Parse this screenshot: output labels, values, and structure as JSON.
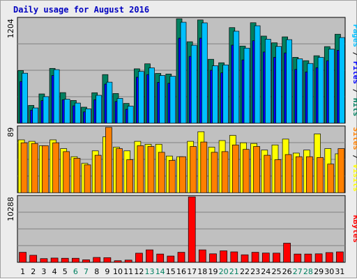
{
  "colors": {
    "pages": "#00c0ff",
    "files": "#0000ff",
    "hits": "#008060",
    "sites": "#ff8000",
    "visits": "#ffff00",
    "kbytes": "#ff0000",
    "weekend_label": "#008060",
    "weekday_label": "#000000",
    "title": "#0000c0",
    "separator": "#000000"
  },
  "chart_data": {
    "type": "bar",
    "title": "Daily usage for August 2016",
    "categories": [
      "1",
      "2",
      "3",
      "4",
      "5",
      "6",
      "7",
      "8",
      "9",
      "10",
      "11",
      "12",
      "13",
      "14",
      "15",
      "16",
      "17",
      "18",
      "19",
      "20",
      "21",
      "22",
      "23",
      "24",
      "25",
      "26",
      "27",
      "28",
      "29",
      "30",
      "31"
    ],
    "weekend_days": [
      "6",
      "7",
      "13",
      "14",
      "20",
      "21",
      "27",
      "28"
    ],
    "panels": [
      {
        "id": "hits",
        "ymax_label": "1204",
        "ylim": [
          0,
          1204
        ],
        "right_label": [
          {
            "text": "Pages",
            "color": "#00c0ff"
          },
          {
            "text": " / ",
            "color": "#000000"
          },
          {
            "text": "Files",
            "color": "#0000ff"
          },
          {
            "text": " / ",
            "color": "#000000"
          },
          {
            "text": "Hits",
            "color": "#008060"
          }
        ],
        "series": [
          {
            "name": "Hits",
            "color": "#008060",
            "values": [
              607,
              205,
              337,
              632,
              352,
              262,
              185,
              351,
              560,
              342,
              228,
              627,
              685,
              574,
              567,
              1204,
              939,
              1190,
              737,
              697,
              1102,
              889,
              1158,
              1004,
              927,
              995,
              759,
              721,
              778,
              883,
              1026
            ]
          },
          {
            "name": "Files",
            "color": "#0000ff",
            "values": [
              480,
              150,
              260,
              550,
              270,
              200,
              130,
              270,
              450,
              250,
              160,
              530,
              560,
              470,
              460,
              980,
              770,
              980,
              610,
              580,
              900,
              730,
              950,
              820,
              760,
              810,
              620,
              590,
              640,
              720,
              840
            ]
          },
          {
            "name": "Pages",
            "color": "#00c0ff",
            "values": [
              576,
              176,
              306,
              617,
              276,
              232,
              165,
              321,
              473,
              286,
              197,
              596,
              637,
              550,
              541,
              1164,
              898,
              1157,
              662,
              672,
              1060,
              865,
              1124,
              969,
              885,
              963,
              742,
              689,
              760,
              855,
              987
            ]
          }
        ]
      },
      {
        "id": "visits",
        "ymax_label": "89",
        "ylim": [
          0,
          89
        ],
        "right_label": [
          {
            "text": "Sites",
            "color": "#ff8000"
          },
          {
            "text": " / ",
            "color": "#000000"
          },
          {
            "text": "Visits",
            "color": "#ffff00"
          }
        ],
        "series": [
          {
            "name": "Visits",
            "color": "#ffff00",
            "values": [
              72,
              70,
              64,
              72,
              60,
              49,
              40,
              57,
              76,
              62,
              57,
              70,
              66,
              66,
              50,
              49,
              70,
              83,
              62,
              71,
              78,
              68,
              67,
              58,
              65,
              73,
              54,
              58,
              80,
              60,
              53
            ]
          },
          {
            "name": "Sites",
            "color": "#ff8000",
            "values": [
              68,
              67,
              64,
              68,
              56,
              47,
              38,
              51,
              89,
              60,
              45,
              64,
              63,
              55,
              44,
              49,
              63,
              69,
              55,
              56,
              65,
              59,
              63,
              51,
              45,
              52,
              49,
              49,
              48,
              39,
              60
            ]
          }
        ]
      },
      {
        "id": "kbytes",
        "ymax_label": "10288",
        "ylim": [
          0,
          10288
        ],
        "right_label": [
          {
            "text": "KBytes",
            "color": "#ff0000"
          }
        ],
        "series": [
          {
            "name": "KBytes",
            "color": "#ff0000",
            "values": [
              1580,
              1100,
              580,
              670,
              640,
              640,
              390,
              770,
              730,
              250,
              350,
              1430,
              1960,
              1300,
              990,
              1580,
              10288,
              1960,
              1330,
              1810,
              1640,
              1180,
              1580,
              1460,
              1440,
              3010,
              1300,
              1300,
              1330,
              1530,
              1640
            ]
          }
        ]
      }
    ]
  }
}
